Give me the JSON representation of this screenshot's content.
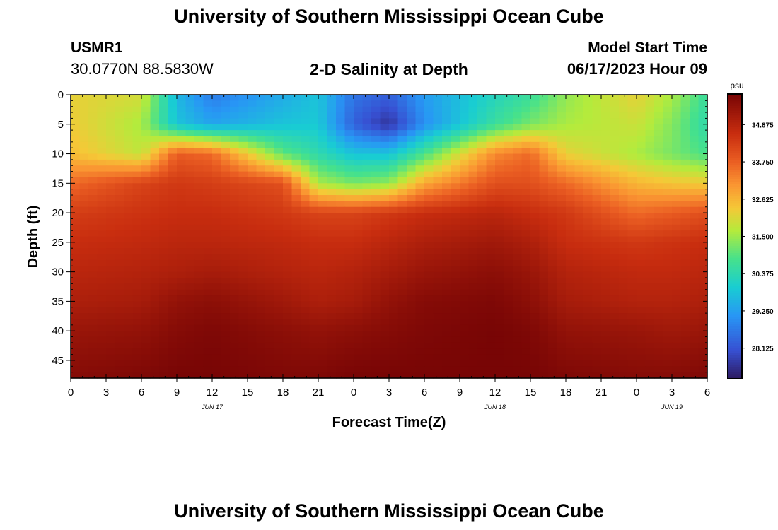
{
  "header": {
    "title": "University of Southern Mississippi Ocean Cube",
    "station_id": "USMR1",
    "station_coords": "30.0770N  88.5830W",
    "plot_title": "2-D Salinity at Depth",
    "start_label": "Model Start Time",
    "start_value": "06/17/2023 Hour 09"
  },
  "footer": {
    "title": "University of Southern Mississippi Ocean Cube"
  },
  "chart_data": {
    "type": "heatmap",
    "title": "2-D Salinity at Depth",
    "xlabel": "Forecast Time(Z)",
    "ylabel": "Depth (ft)",
    "x_tick_labels": [
      "0",
      "3",
      "6",
      "9",
      "12",
      "15",
      "18",
      "21",
      "0",
      "3",
      "6",
      "9",
      "12",
      "15",
      "18",
      "21",
      "0",
      "3",
      "6"
    ],
    "x_hours_from_start": [
      0,
      54
    ],
    "date_labels": [
      {
        "label": "JUN 17",
        "hour": 12
      },
      {
        "label": "JUN 18",
        "hour": 36
      },
      {
        "label": "JUN 19",
        "hour": 51
      }
    ],
    "y_ticks": [
      0,
      5,
      10,
      15,
      20,
      25,
      30,
      35,
      40,
      45
    ],
    "ylim": [
      0,
      48
    ],
    "colorbar": {
      "unit": "psu",
      "range": [
        27.2,
        35.8
      ],
      "ticks": [
        "34.875",
        "33.750",
        "32.625",
        "31.500",
        "30.375",
        "29.250",
        "28.125"
      ]
    },
    "salinity_psu": {
      "hours": [
        0,
        6,
        9,
        12,
        18,
        21,
        24,
        27,
        30,
        36,
        39,
        42,
        48,
        51,
        54
      ],
      "depths_ft": [
        0,
        5,
        10,
        15,
        20,
        25,
        30,
        35,
        40,
        48
      ],
      "values": [
        [
          32.2,
          32.0,
          29.6,
          28.7,
          29.4,
          29.8,
          28.6,
          28.3,
          29.2,
          30.2,
          30.6,
          31.4,
          32.2,
          31.6,
          30.6
        ],
        [
          32.3,
          31.6,
          29.8,
          29.3,
          29.8,
          29.9,
          28.3,
          27.6,
          29.0,
          30.6,
          31.2,
          31.6,
          31.9,
          31.3,
          30.4
        ],
        [
          32.5,
          31.8,
          33.8,
          33.6,
          31.0,
          30.4,
          29.8,
          29.8,
          30.8,
          33.2,
          33.6,
          32.2,
          31.6,
          31.2,
          30.8
        ],
        [
          33.6,
          34.2,
          34.4,
          34.3,
          34.0,
          31.6,
          31.2,
          31.4,
          32.8,
          34.0,
          34.0,
          33.6,
          32.6,
          32.4,
          32.3
        ],
        [
          34.3,
          34.5,
          34.6,
          34.6,
          34.4,
          34.2,
          34.2,
          34.4,
          34.6,
          34.8,
          34.6,
          34.4,
          33.6,
          33.8,
          34.0
        ],
        [
          34.6,
          34.7,
          34.8,
          34.8,
          34.7,
          34.6,
          34.6,
          34.8,
          35.0,
          35.2,
          35.0,
          34.6,
          34.4,
          34.5,
          34.6
        ],
        [
          34.8,
          34.9,
          35.0,
          35.1,
          34.9,
          34.8,
          34.9,
          35.1,
          35.3,
          35.5,
          35.3,
          34.9,
          34.7,
          34.7,
          34.8
        ],
        [
          35.0,
          35.1,
          35.4,
          35.5,
          35.2,
          35.0,
          35.1,
          35.4,
          35.6,
          35.7,
          35.5,
          35.1,
          34.9,
          34.9,
          35.0
        ],
        [
          35.3,
          35.4,
          35.6,
          35.7,
          35.5,
          35.4,
          35.5,
          35.6,
          35.7,
          35.8,
          35.7,
          35.4,
          35.3,
          35.2,
          35.3
        ],
        [
          35.6,
          35.7,
          35.8,
          35.8,
          35.7,
          35.7,
          35.8,
          35.8,
          35.8,
          35.8,
          35.8,
          35.7,
          35.6,
          35.6,
          35.7
        ]
      ]
    }
  }
}
